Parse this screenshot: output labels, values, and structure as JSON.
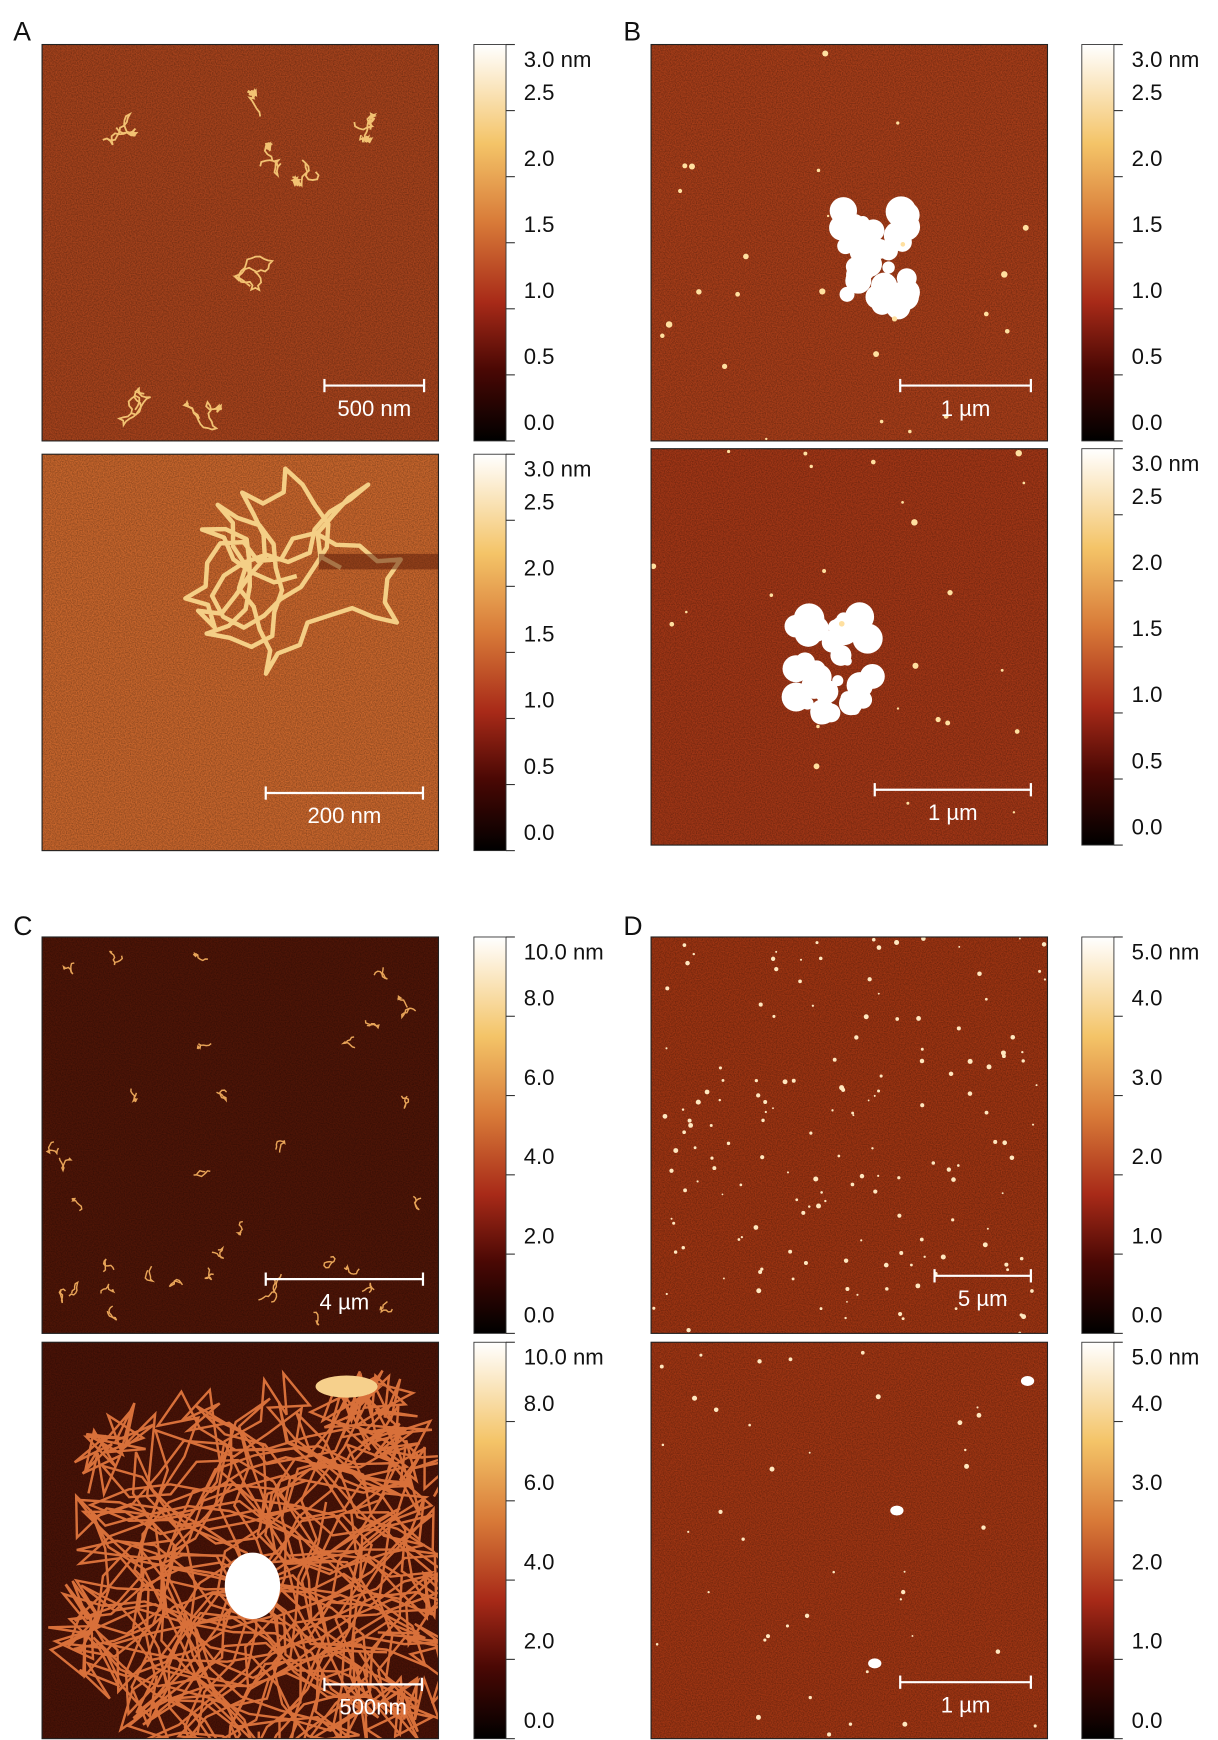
{
  "panels": [
    {
      "label": "A",
      "images": [
        {
          "scale_bar": "500 nm",
          "colorbar": {
            "ticks": [
              {
                "value": 0,
                "label": "0.0"
              },
              0.5,
              {
                "value": 1,
                "label": "1.0"
              },
              1.5,
              {
                "value": 2,
                "label": "2.0"
              },
              2.5,
              {
                "value": 3,
                "label": "3.0 nm"
              }
            ]
          }
        },
        {
          "scale_bar": "200 nm",
          "colorbar": {
            "ticks": [
              {
                "value": 0,
                "label": "0.0"
              },
              0.5,
              {
                "value": 1,
                "label": "1.0"
              },
              1.5,
              {
                "value": 2,
                "label": "2.0"
              },
              2.5,
              {
                "value": 3,
                "label": "3.0 nm"
              }
            ]
          }
        }
      ]
    },
    {
      "label": "B",
      "images": [
        {
          "scale_bar": "1 µm",
          "colorbar": {
            "ticks": [
              {
                "value": 0,
                "label": "0.0"
              },
              0.5,
              {
                "value": 1,
                "label": "1.0"
              },
              1.5,
              {
                "value": 2,
                "label": "2.0"
              },
              2.5,
              {
                "value": 3,
                "label": "3.0 nm"
              }
            ]
          }
        },
        {
          "scale_bar": "1 µm",
          "colorbar": {
            "ticks": [
              {
                "value": 0,
                "label": "0.0"
              },
              0.5,
              {
                "value": 1,
                "label": "1.0"
              },
              1.5,
              {
                "value": 2,
                "label": "2.0"
              },
              2.5,
              {
                "value": 3,
                "label": "3.0 nm"
              }
            ]
          }
        }
      ]
    },
    {
      "label": "C",
      "images": [
        {
          "scale_bar": "4 µm",
          "colorbar": {
            "ticks": [
              {
                "value": 0,
                "label": "0.0"
              },
              {
                "value": 2,
                "label": "2.0"
              },
              {
                "value": 4,
                "label": "4.0"
              },
              {
                "value": 6,
                "label": "6.0"
              },
              {
                "value": 8,
                "label": "8.0"
              },
              {
                "value": 10,
                "label": "10.0 nm"
              }
            ]
          }
        },
        {
          "scale_bar": "500nm",
          "colorbar": {
            "ticks": [
              {
                "value": 0,
                "label": "0.0"
              },
              {
                "value": 2,
                "label": "2.0"
              },
              {
                "value": 4,
                "label": "4.0"
              },
              {
                "value": 6,
                "label": "6.0"
              },
              {
                "value": 8,
                "label": "8.0"
              },
              {
                "value": 10,
                "label": "10.0 nm"
              }
            ]
          }
        }
      ]
    },
    {
      "label": "D",
      "images": [
        {
          "scale_bar": "5 µm",
          "colorbar": {
            "ticks": [
              {
                "value": 0,
                "label": "0.0"
              },
              {
                "value": 1,
                "label": "1.0"
              },
              {
                "value": 2,
                "label": "2.0"
              },
              {
                "value": 3,
                "label": "3.0"
              },
              {
                "value": 4,
                "label": "4.0"
              },
              {
                "value": 5,
                "label": "5.0 nm"
              }
            ]
          }
        },
        {
          "scale_bar": "1 µm",
          "colorbar": {
            "ticks": [
              {
                "value": 0,
                "label": "0.0"
              },
              {
                "value": 1,
                "label": "1.0"
              },
              {
                "value": 2,
                "label": "2.0"
              },
              {
                "value": 3,
                "label": "3.0"
              },
              {
                "value": 4,
                "label": "4.0"
              },
              {
                "value": 5,
                "label": "5.0 nm"
              }
            ]
          }
        }
      ]
    }
  ]
}
